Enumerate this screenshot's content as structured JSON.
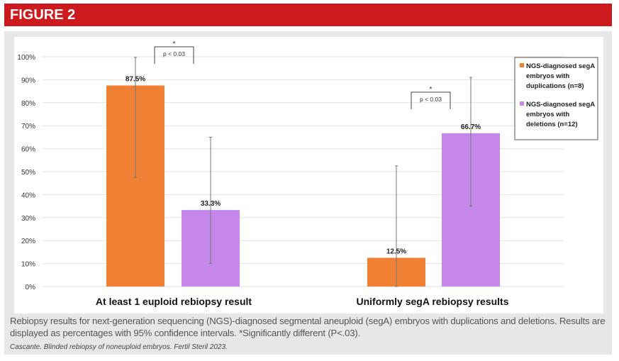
{
  "header": {
    "title": "FIGURE 2"
  },
  "chart_data": {
    "type": "bar",
    "categories": [
      "At least 1 euploid rebiopsy result",
      "Uniformly segA rebiopsy results"
    ],
    "series": [
      {
        "name": "NGS-diagnosed segA embryos with duplications (n=8)",
        "color": "#f08033",
        "values": [
          87.5,
          12.5
        ],
        "labels": [
          "87.5%",
          "12.5%"
        ],
        "ci_low": [
          47.5,
          0
        ],
        "ci_high": [
          99.7,
          52.5
        ]
      },
      {
        "name": "NGS-diagnosed segA embryos with deletions (n=12)",
        "color": "#c687ea",
        "values": [
          33.3,
          66.7
        ],
        "labels": [
          "33.3%",
          "66.7%"
        ],
        "ci_low": [
          10,
          35
        ],
        "ci_high": [
          65,
          91
        ]
      }
    ],
    "legend_lines": [
      [
        "NGS-diagnosed segA",
        "embryos with",
        "duplications (n=8)"
      ],
      [
        "NGS-diagnosed segA",
        "embryos with",
        "deletions (n=12)"
      ]
    ],
    "ylim": [
      0,
      100
    ],
    "yticks": [
      "0%",
      "10%",
      "20%",
      "30%",
      "40%",
      "50%",
      "60%",
      "70%",
      "80%",
      "90%",
      "100%"
    ],
    "grid": true,
    "legend_position": "right",
    "annotations": [
      {
        "star": "*",
        "text": "p < 0.03",
        "category": 0
      },
      {
        "star": "*",
        "text": "p < 0.03",
        "category": 1
      }
    ]
  },
  "caption": {
    "text": "Rebiopsy results for next-generation sequencing (NGS)-diagnosed segmental aneuploid (segA) embryos with duplications and deletions. Results are displayed as percentages with 95% confidence intervals. *Significantly different (P<.03).",
    "source": "Cascante. Blinded rebiopsy of noneuploid embryos. Fertil Steril 2023."
  }
}
